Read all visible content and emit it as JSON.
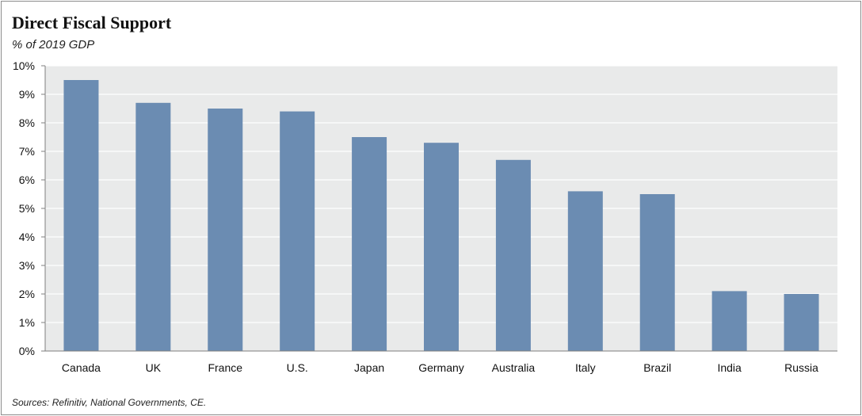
{
  "header": {
    "title": "Direct Fiscal Support",
    "subtitle": "% of 2019 GDP"
  },
  "footer": {
    "source": "Sources: Refinitiv, National Governments, CE."
  },
  "colors": {
    "bar": "#6b8cb2",
    "plot_background": "#e9eaea",
    "gridline": "#ffffff",
    "axis": "#7f7f7f"
  },
  "chart_data": {
    "type": "bar",
    "title": "Direct Fiscal Support",
    "subtitle": "% of 2019 GDP",
    "categories": [
      "Canada",
      "UK",
      "France",
      "U.S.",
      "Japan",
      "Germany",
      "Australia",
      "Italy",
      "Brazil",
      "India",
      "Russia"
    ],
    "values": [
      9.5,
      8.7,
      8.5,
      8.4,
      7.5,
      7.3,
      6.7,
      5.6,
      5.5,
      2.1,
      2.0
    ],
    "ylim": [
      0,
      10
    ],
    "yticks": [
      0,
      1,
      2,
      3,
      4,
      5,
      6,
      7,
      8,
      9,
      10
    ],
    "ytick_labels": [
      "0%",
      "1%",
      "2%",
      "3%",
      "4%",
      "5%",
      "6%",
      "7%",
      "8%",
      "9%",
      "10%"
    ],
    "grid": true,
    "legend": "none",
    "xlabel": "",
    "ylabel": ""
  }
}
